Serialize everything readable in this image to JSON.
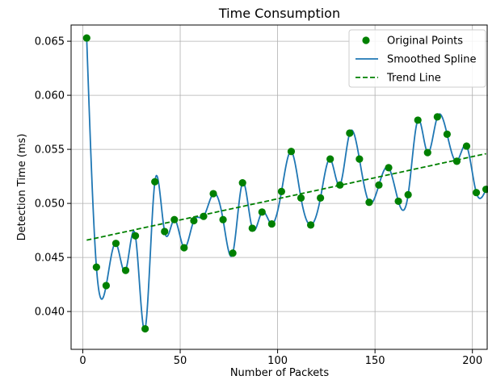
{
  "chart_data": {
    "type": "scatter",
    "title": "Time Consumption",
    "xlabel": "Number of Packets",
    "ylabel": "Detection Time (ms)",
    "xlim": [
      -6,
      208
    ],
    "ylim": [
      0.0365,
      0.0665
    ],
    "xticks": [
      0,
      50,
      100,
      150,
      200
    ],
    "yticks": [
      0.04,
      0.045,
      0.05,
      0.055,
      0.06,
      0.065
    ],
    "xtick_labels": [
      "0",
      "50",
      "100",
      "150",
      "200"
    ],
    "ytick_labels": [
      "0.040",
      "0.045",
      "0.050",
      "0.055",
      "0.060",
      "0.065"
    ],
    "grid": true,
    "legend_position": "top-right",
    "series": [
      {
        "name": "Original Points",
        "kind": "scatter",
        "color": "#008000",
        "x": [
          2,
          7,
          12,
          17,
          22,
          27,
          32,
          37,
          42,
          47,
          52,
          57,
          62,
          67,
          72,
          77,
          82,
          87,
          92,
          97,
          102,
          107,
          112,
          117,
          122,
          127,
          132,
          137,
          142,
          147,
          152,
          157,
          162,
          167,
          172,
          177,
          182,
          187,
          192,
          197,
          202,
          207
        ],
        "y": [
          0.0653,
          0.0441,
          0.0424,
          0.0463,
          0.0438,
          0.047,
          0.0384,
          0.052,
          0.0474,
          0.0485,
          0.0459,
          0.0484,
          0.0488,
          0.0509,
          0.0485,
          0.0454,
          0.0519,
          0.0477,
          0.0492,
          0.0481,
          0.0511,
          0.0548,
          0.0505,
          0.048,
          0.0505,
          0.0541,
          0.0517,
          0.0565,
          0.0541,
          0.0501,
          0.0517,
          0.0533,
          0.0502,
          0.0508,
          0.0577,
          0.0547,
          0.058,
          0.0564,
          0.0539,
          0.0553,
          0.051,
          0.0513
        ]
      },
      {
        "name": "Smoothed Spline",
        "kind": "line",
        "color": "#1f77b4"
      },
      {
        "name": "Trend Line",
        "kind": "dashed-line",
        "color": "#008000",
        "x": [
          2,
          207
        ],
        "y": [
          0.0466,
          0.0546
        ]
      }
    ]
  }
}
